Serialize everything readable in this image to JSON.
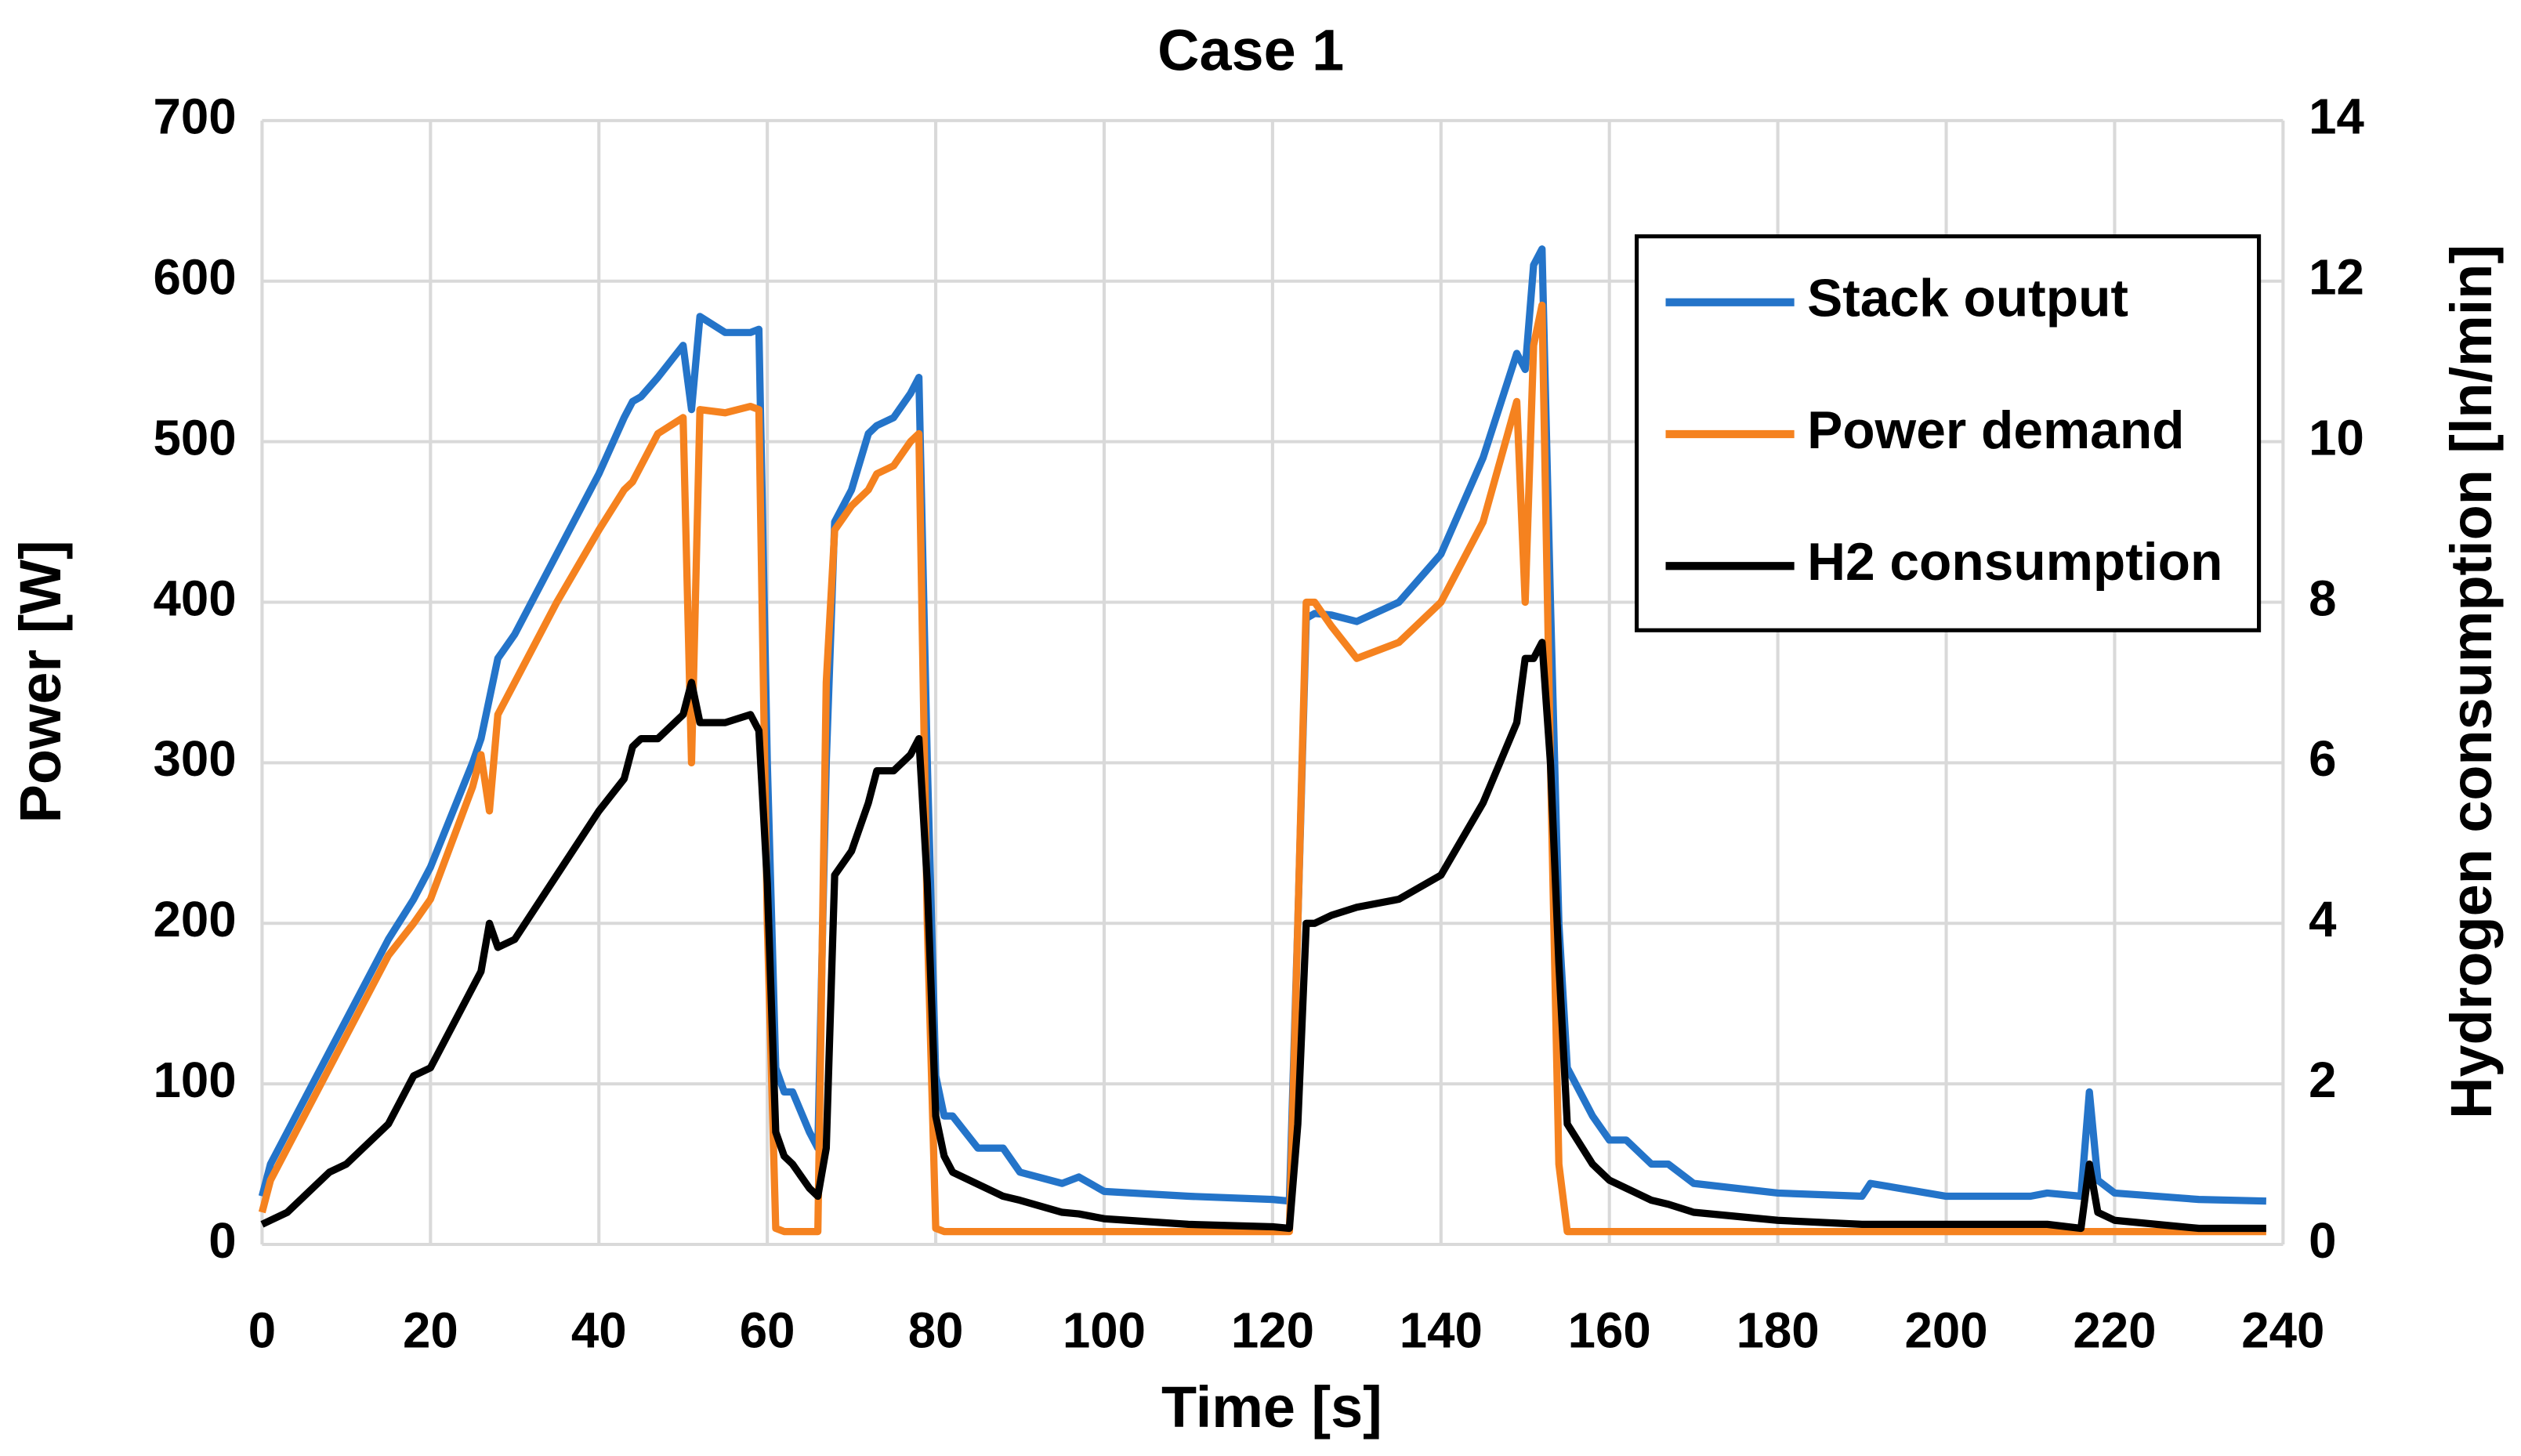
{
  "chart_data": {
    "type": "line",
    "title": "Case 1",
    "x_label": "Time [s]",
    "y_label": "Power [W]",
    "y2_label": "Hydrogen consumption [ln/min]",
    "x": [
      0,
      1,
      3,
      5,
      8,
      10,
      15,
      18,
      20,
      25,
      26,
      27,
      28,
      30,
      35,
      40,
      43,
      44,
      45,
      47,
      50,
      51,
      52,
      55,
      58,
      59,
      60,
      61,
      62,
      63,
      65,
      66,
      67,
      68,
      70,
      72,
      73,
      75,
      77,
      78,
      79,
      80,
      81,
      82,
      85,
      88,
      90,
      95,
      97,
      100,
      110,
      120,
      122,
      123,
      124,
      125,
      127,
      130,
      135,
      140,
      145,
      149,
      150,
      151,
      152,
      153,
      154,
      155,
      158,
      160,
      162,
      165,
      167,
      170,
      180,
      190,
      191,
      200,
      210,
      212,
      216,
      217,
      218,
      220,
      230,
      238
    ],
    "series": [
      {
        "name": "Stack output",
        "color": "#2474c9",
        "values": [
          30,
          50,
          70,
          90,
          120,
          140,
          190,
          215,
          235,
          300,
          315,
          340,
          365,
          380,
          430,
          480,
          515,
          525,
          528,
          540,
          560,
          520,
          578,
          568,
          568,
          570,
          300,
          110,
          95,
          95,
          70,
          60,
          300,
          450,
          470,
          505,
          510,
          515,
          530,
          540,
          300,
          105,
          80,
          80,
          60,
          60,
          45,
          38,
          42,
          33,
          30,
          28,
          27,
          200,
          390,
          393,
          392,
          388,
          400,
          430,
          490,
          555,
          545,
          610,
          620,
          400,
          200,
          110,
          80,
          65,
          65,
          50,
          50,
          38,
          32,
          30,
          38,
          30,
          30,
          32,
          30,
          95,
          40,
          32,
          28,
          27
        ]
      },
      {
        "name": "Power demand",
        "color": "#f5821f",
        "values": [
          20,
          40,
          60,
          80,
          110,
          130,
          180,
          200,
          215,
          285,
          305,
          270,
          330,
          350,
          400,
          445,
          470,
          475,
          485,
          505,
          515,
          300,
          520,
          518,
          522,
          520,
          200,
          10,
          8,
          8,
          8,
          8,
          350,
          445,
          460,
          470,
          480,
          485,
          500,
          505,
          200,
          10,
          8,
          8,
          8,
          8,
          8,
          8,
          8,
          8,
          8,
          8,
          8,
          200,
          400,
          400,
          385,
          365,
          375,
          400,
          450,
          525,
          400,
          560,
          585,
          300,
          50,
          8,
          8,
          8,
          8,
          8,
          8,
          8,
          8,
          8,
          8,
          8,
          8,
          8,
          8,
          8,
          8,
          8,
          8,
          8
        ]
      },
      {
        "name": "H2 consumption",
        "color": "#000000",
        "axis": "y2",
        "values": [
          0.25,
          0.3,
          0.4,
          0.6,
          0.9,
          1.0,
          1.5,
          2.1,
          2.2,
          3.2,
          3.4,
          4.0,
          3.7,
          3.8,
          4.6,
          5.4,
          5.8,
          6.2,
          6.3,
          6.3,
          6.6,
          7.0,
          6.5,
          6.5,
          6.6,
          6.4,
          4.5,
          1.4,
          1.1,
          1.0,
          0.7,
          0.6,
          1.2,
          4.6,
          4.9,
          5.5,
          5.9,
          5.9,
          6.1,
          6.3,
          4.5,
          1.6,
          1.1,
          0.9,
          0.75,
          0.6,
          0.55,
          0.4,
          0.38,
          0.32,
          0.25,
          0.22,
          0.2,
          1.5,
          4.0,
          4.0,
          4.1,
          4.2,
          4.3,
          4.6,
          5.5,
          6.5,
          7.3,
          7.3,
          7.5,
          6.0,
          3.5,
          1.5,
          1.0,
          0.8,
          0.7,
          0.55,
          0.5,
          0.4,
          0.3,
          0.25,
          0.25,
          0.25,
          0.25,
          0.25,
          0.2,
          1.0,
          0.4,
          0.3,
          0.2,
          0.2
        ]
      }
    ],
    "xlim": [
      0,
      240
    ],
    "xticks": [
      0,
      20,
      40,
      60,
      80,
      100,
      120,
      140,
      160,
      180,
      200,
      220,
      240
    ],
    "ylim": [
      0,
      700
    ],
    "yticks": [
      0,
      100,
      200,
      300,
      400,
      500,
      600,
      700
    ],
    "y2lim": [
      0,
      14
    ],
    "y2ticks": [
      0,
      2,
      4,
      6,
      8,
      10,
      12,
      14
    ],
    "grid": true,
    "legend": "upper right"
  }
}
